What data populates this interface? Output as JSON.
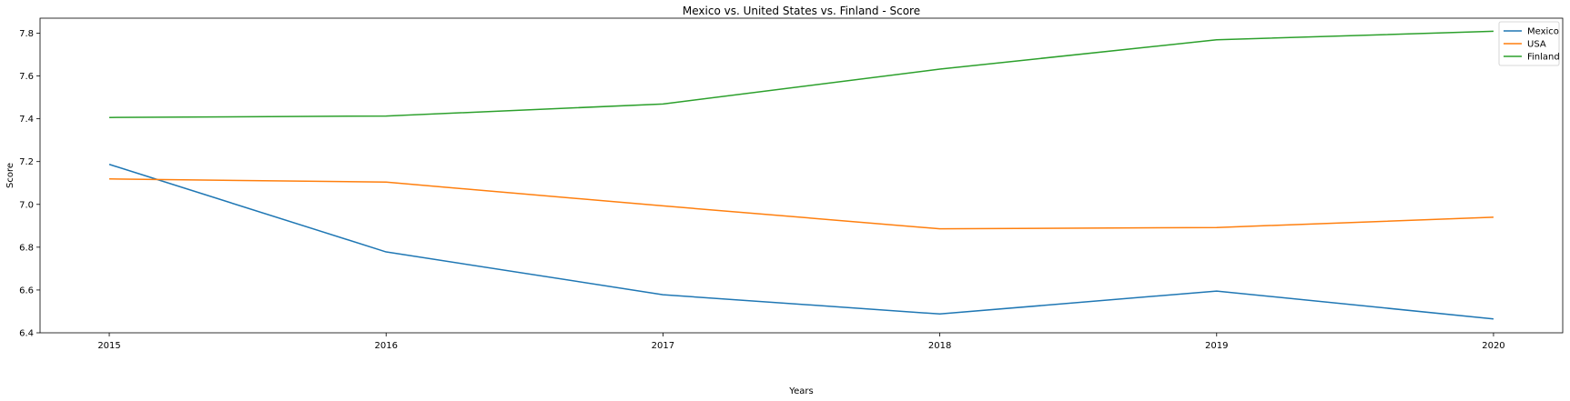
{
  "chart_data": {
    "type": "line",
    "title": "Mexico vs. United States vs. Finland - Score",
    "xlabel": "Years",
    "ylabel": "Score",
    "x": [
      2015,
      2016,
      2017,
      2018,
      2019,
      2020
    ],
    "xlim": [
      2014.75,
      2020.25
    ],
    "ylim": [
      6.4,
      7.87
    ],
    "yticks": [
      6.4,
      6.6,
      6.8,
      7.0,
      7.2,
      7.4,
      7.6,
      7.8
    ],
    "ytick_labels": [
      "6.4",
      "6.6",
      "6.8",
      "7.0",
      "7.2",
      "7.4",
      "7.6",
      "7.8"
    ],
    "xtick_labels": [
      "2015",
      "2016",
      "2017",
      "2018",
      "2019",
      "2020"
    ],
    "grid": false,
    "legend_position": "top-right",
    "series": [
      {
        "name": "Mexico",
        "color": "#1f77b4",
        "values": [
          7.187,
          6.778,
          6.578,
          6.488,
          6.595,
          6.465
        ]
      },
      {
        "name": "USA",
        "color": "#ff7f0e",
        "values": [
          7.119,
          7.104,
          6.993,
          6.886,
          6.892,
          6.94
        ]
      },
      {
        "name": "Finland",
        "color": "#2ca02c",
        "values": [
          7.406,
          7.413,
          7.469,
          7.632,
          7.769,
          7.809
        ]
      }
    ]
  }
}
